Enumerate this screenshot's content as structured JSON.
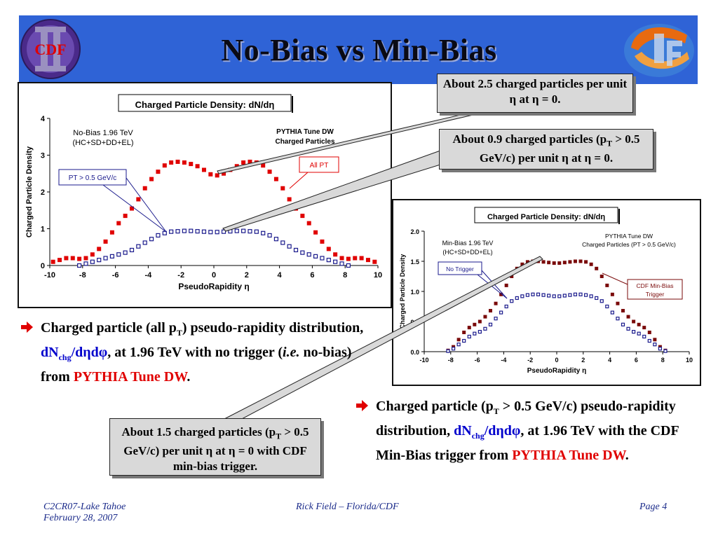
{
  "slide": {
    "title": "No-Bias vs Min-Bias",
    "logo_left_text": "CDF",
    "footer": {
      "left_line1": "C2CR07-Lake Tahoe",
      "left_line2": "February 28, 2007",
      "center": "Rick Field – Florida/CDF",
      "right": "Page 4"
    },
    "colors": {
      "banner": "#2f63d6",
      "highlight_red": "#e00000",
      "highlight_blue": "#0000cc",
      "callout_bg": "#d9d9d9"
    }
  },
  "callouts": {
    "c1": "About 2.5 charged particles per unit η at η = 0.",
    "c2_a": "About 0.9 charged particles (p",
    "c2_sub": "T",
    "c2_b": " > 0.5 GeV/c) per unit η at η = 0.",
    "c3_a": "About 1.5 charged particles (p",
    "c3_sub": "T",
    "c3_b": " > 0.5 GeV/c) per unit η at η = 0 with CDF min-bias trigger."
  },
  "bullets": {
    "b1": {
      "t1": "Charged particle (all p",
      "sub1": "T",
      "t2": ") pseudo-rapidity distribution, ",
      "formula_a": "dN",
      "formula_sub": "chg",
      "formula_b": "/dηdφ",
      "t3": ", at 1.96 TeV with no trigger (",
      "ie": "i.e.",
      "t4": " no-bias) from ",
      "red": "PYTHIA Tune DW",
      "t5": "."
    },
    "b2": {
      "t1": "Charged particle (p",
      "sub1": "T",
      "t2": " > 0.5 GeV/c) pseudo-rapidity distribution, ",
      "formula_a": "dN",
      "formula_sub": "chg",
      "formula_b": "/dηdφ",
      "t3": ", at 1.96 TeV with the CDF Min-Bias trigger from ",
      "red": "PYTHIA Tune DW",
      "t4": "."
    }
  },
  "chart_data": [
    {
      "type": "scatter",
      "title": "Charged Particle Density: dN/dη",
      "xlabel": "PseudoRapidity η",
      "ylabel": "Charged Particle Density",
      "xlim": [
        -10,
        10
      ],
      "ylim": [
        0,
        4
      ],
      "xticks": [
        "-10",
        "-8",
        "-6",
        "-4",
        "-2",
        "0",
        "2",
        "4",
        "6",
        "8",
        "10"
      ],
      "yticks": [
        "0",
        "1",
        "2",
        "3",
        "4"
      ],
      "annotations": {
        "left_line1": "No-Bias 1.96 TeV",
        "left_line2": "(HC+SD+DD+EL)",
        "right_line1": "PYTHIA Tune DW",
        "right_line2": "Charged Particles",
        "label_all": "All PT",
        "label_pt": "PT > 0.5 GeV/c"
      },
      "series": [
        {
          "name": "All PT",
          "color": "#e00000",
          "marker": "filled-square",
          "x": [
            -9.8,
            -9.4,
            -9.0,
            -8.6,
            -8.2,
            -7.8,
            -7.4,
            -7.0,
            -6.6,
            -6.2,
            -5.8,
            -5.4,
            -5.0,
            -4.6,
            -4.2,
            -3.8,
            -3.4,
            -3.0,
            -2.6,
            -2.2,
            -1.8,
            -1.4,
            -1.0,
            -0.6,
            -0.2,
            0.2,
            0.6,
            1.0,
            1.4,
            1.8,
            2.2,
            2.6,
            3.0,
            3.4,
            3.8,
            4.2,
            4.6,
            5.0,
            5.4,
            5.8,
            6.2,
            6.6,
            7.0,
            7.4,
            7.8,
            8.2,
            8.6,
            9.0,
            9.4,
            9.8
          ],
          "y": [
            0.1,
            0.15,
            0.2,
            0.2,
            0.18,
            0.2,
            0.3,
            0.45,
            0.65,
            0.9,
            1.15,
            1.35,
            1.55,
            1.8,
            2.1,
            2.35,
            2.55,
            2.72,
            2.8,
            2.82,
            2.8,
            2.76,
            2.7,
            2.6,
            2.48,
            2.45,
            2.5,
            2.6,
            2.7,
            2.8,
            2.82,
            2.8,
            2.72,
            2.55,
            2.35,
            2.1,
            1.8,
            1.55,
            1.35,
            1.15,
            0.9,
            0.65,
            0.45,
            0.3,
            0.2,
            0.18,
            0.2,
            0.2,
            0.15,
            0.1
          ]
        },
        {
          "name": "PT > 0.5 GeV/c",
          "color": "#1a1a8c",
          "marker": "open-square",
          "x": [
            -8.2,
            -7.8,
            -7.4,
            -7.0,
            -6.6,
            -6.2,
            -5.8,
            -5.4,
            -5.0,
            -4.6,
            -4.2,
            -3.8,
            -3.4,
            -3.0,
            -2.6,
            -2.2,
            -1.8,
            -1.4,
            -1.0,
            -0.6,
            -0.2,
            0.2,
            0.6,
            1.0,
            1.4,
            1.8,
            2.2,
            2.6,
            3.0,
            3.4,
            3.8,
            4.2,
            4.6,
            5.0,
            5.4,
            5.8,
            6.2,
            6.6,
            7.0,
            7.4,
            7.8,
            8.2
          ],
          "y": [
            0.0,
            0.05,
            0.1,
            0.15,
            0.2,
            0.25,
            0.3,
            0.35,
            0.42,
            0.52,
            0.62,
            0.72,
            0.82,
            0.88,
            0.92,
            0.93,
            0.94,
            0.94,
            0.93,
            0.92,
            0.91,
            0.91,
            0.92,
            0.93,
            0.94,
            0.94,
            0.93,
            0.92,
            0.88,
            0.82,
            0.72,
            0.62,
            0.52,
            0.42,
            0.35,
            0.3,
            0.25,
            0.2,
            0.15,
            0.1,
            0.05,
            0.0
          ]
        }
      ]
    },
    {
      "type": "scatter",
      "title": "Charged Particle Density: dN/dη",
      "xlabel": "PseudoRapidity η",
      "ylabel": "Charged Particle Density",
      "xlim": [
        -10,
        10
      ],
      "ylim": [
        0,
        2
      ],
      "xticks": [
        "-10",
        "-8",
        "-6",
        "-4",
        "-2",
        "0",
        "2",
        "4",
        "6",
        "8",
        "10"
      ],
      "yticks": [
        "0.0",
        "0.5",
        "1.0",
        "1.5",
        "2.0"
      ],
      "annotations": {
        "left_line1": "Min-Bias 1.96 TeV",
        "left_line2": "(HC+SD+DD+EL)",
        "right_line1": "PYTHIA Tune DW",
        "right_line2": "Charged Particles (PT > 0.5 GeV/c)",
        "label_trig_1": "CDF Min-Bias",
        "label_trig_2": "Trigger",
        "label_notrig": "No Trigger"
      },
      "series": [
        {
          "name": "CDF Min-Bias Trigger",
          "color": "#7a0a0a",
          "marker": "filled-square",
          "x": [
            -8.2,
            -7.8,
            -7.4,
            -7.0,
            -6.6,
            -6.2,
            -5.8,
            -5.4,
            -5.0,
            -4.6,
            -4.2,
            -3.8,
            -3.4,
            -3.0,
            -2.6,
            -2.2,
            -1.8,
            -1.4,
            -1.0,
            -0.6,
            -0.2,
            0.2,
            0.6,
            1.0,
            1.4,
            1.8,
            2.2,
            2.6,
            3.0,
            3.4,
            3.8,
            4.2,
            4.6,
            5.0,
            5.4,
            5.8,
            6.2,
            6.6,
            7.0,
            7.4,
            7.8,
            8.2
          ],
          "y": [
            0.02,
            0.08,
            0.2,
            0.32,
            0.4,
            0.45,
            0.5,
            0.58,
            0.68,
            0.8,
            0.95,
            1.1,
            1.25,
            1.38,
            1.45,
            1.49,
            1.5,
            1.5,
            1.49,
            1.48,
            1.47,
            1.47,
            1.48,
            1.49,
            1.5,
            1.5,
            1.49,
            1.45,
            1.38,
            1.25,
            1.1,
            0.95,
            0.8,
            0.68,
            0.58,
            0.5,
            0.45,
            0.4,
            0.32,
            0.2,
            0.08,
            0.02
          ]
        },
        {
          "name": "No Trigger",
          "color": "#1a1a8c",
          "marker": "open-square",
          "x": [
            -8.2,
            -7.8,
            -7.4,
            -7.0,
            -6.6,
            -6.2,
            -5.8,
            -5.4,
            -5.0,
            -4.6,
            -4.2,
            -3.8,
            -3.4,
            -3.0,
            -2.6,
            -2.2,
            -1.8,
            -1.4,
            -1.0,
            -0.6,
            -0.2,
            0.2,
            0.6,
            1.0,
            1.4,
            1.8,
            2.2,
            2.6,
            3.0,
            3.4,
            3.8,
            4.2,
            4.6,
            5.0,
            5.4,
            5.8,
            6.2,
            6.6,
            7.0,
            7.4,
            7.8,
            8.2
          ],
          "y": [
            0.01,
            0.05,
            0.12,
            0.18,
            0.25,
            0.3,
            0.33,
            0.38,
            0.45,
            0.55,
            0.65,
            0.75,
            0.84,
            0.89,
            0.92,
            0.94,
            0.95,
            0.95,
            0.94,
            0.93,
            0.92,
            0.92,
            0.93,
            0.94,
            0.95,
            0.95,
            0.94,
            0.92,
            0.89,
            0.84,
            0.75,
            0.65,
            0.55,
            0.45,
            0.38,
            0.33,
            0.3,
            0.25,
            0.18,
            0.12,
            0.05,
            0.01
          ]
        }
      ]
    }
  ]
}
